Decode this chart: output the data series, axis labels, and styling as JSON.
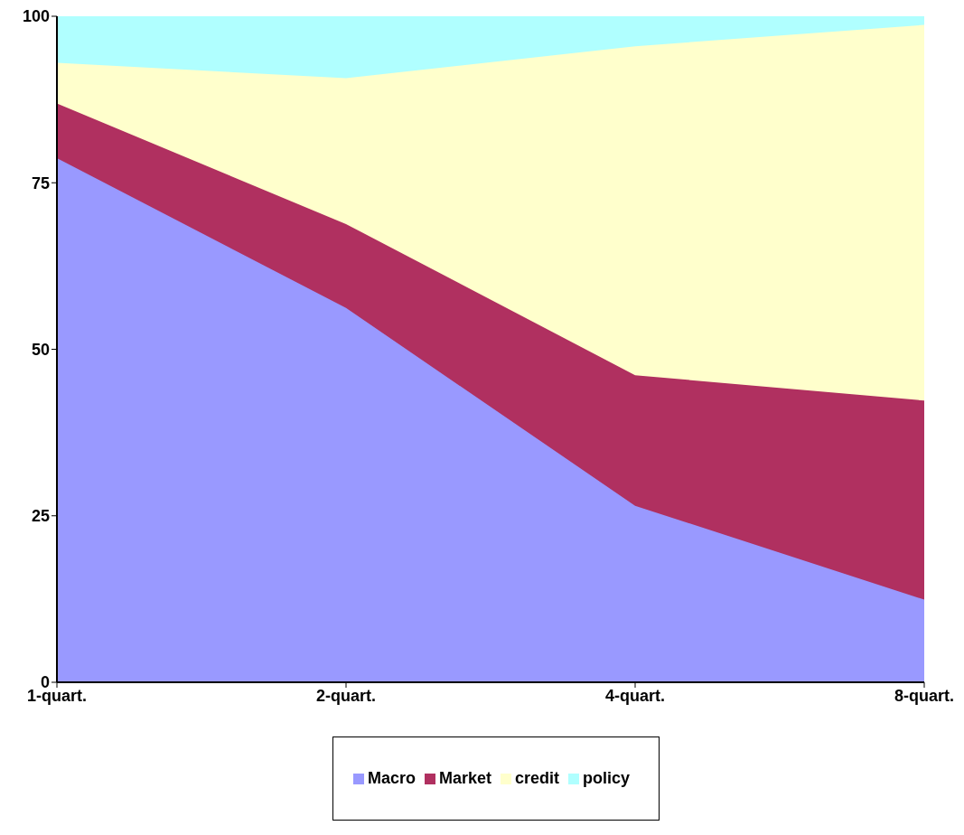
{
  "chart_data": {
    "type": "area",
    "stacked": true,
    "categories": [
      "1-quart.",
      "2-quart.",
      "4-quart.",
      "8-quart."
    ],
    "series": [
      {
        "name": "Macro",
        "color": "#9999ff",
        "values": [
          78.7,
          56.2,
          26.5,
          12.4
        ]
      },
      {
        "name": "Market",
        "color": "#b03060",
        "values": [
          8.2,
          12.6,
          19.6,
          29.9
        ]
      },
      {
        "name": "credit",
        "color": "#ffffcc",
        "values": [
          6.1,
          21.9,
          49.4,
          56.4
        ]
      },
      {
        "name": "policy",
        "color": "#b0ffff",
        "values": [
          7.0,
          9.3,
          4.5,
          1.3
        ]
      }
    ],
    "ylim": [
      0,
      100
    ],
    "yticks": [
      0,
      25,
      50,
      75,
      100
    ],
    "grid": false,
    "legend": "bottom"
  }
}
